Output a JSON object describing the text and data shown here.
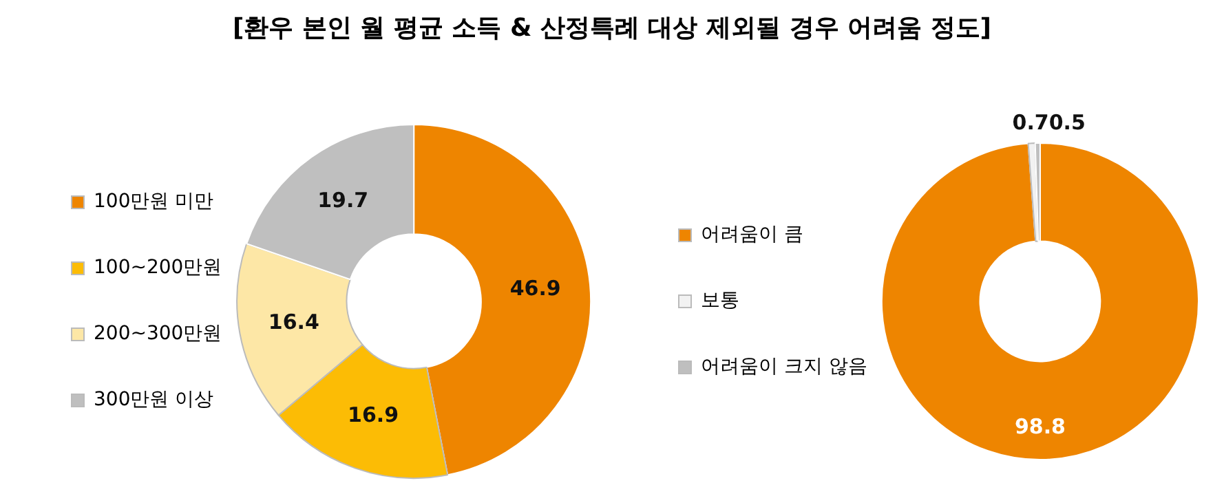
{
  "chart_data": [
    {
      "type": "donut",
      "title": "[환우 본인 월 평균 소득 & 산정특례 대상 제외될 경우 어려움 정도]",
      "categories": [
        "100만원 미만",
        "100~200만원",
        "200~300만원",
        "300만원 이상"
      ],
      "values": [
        46.9,
        16.9,
        16.4,
        19.7
      ],
      "colors": [
        "#ee8500",
        "#fcbc05",
        "#fde7a6",
        "#bfbfbf"
      ],
      "data_labels": true,
      "legend": "left"
    },
    {
      "type": "donut",
      "categories": [
        "어려움이 큼",
        "보통",
        "어려움이 크지 않음"
      ],
      "values": [
        98.8,
        0.7,
        0.5
      ],
      "colors": [
        "#ee8500",
        "#f2f2f2",
        "#bfbfbf"
      ],
      "data_labels": true,
      "legend": "left"
    }
  ]
}
